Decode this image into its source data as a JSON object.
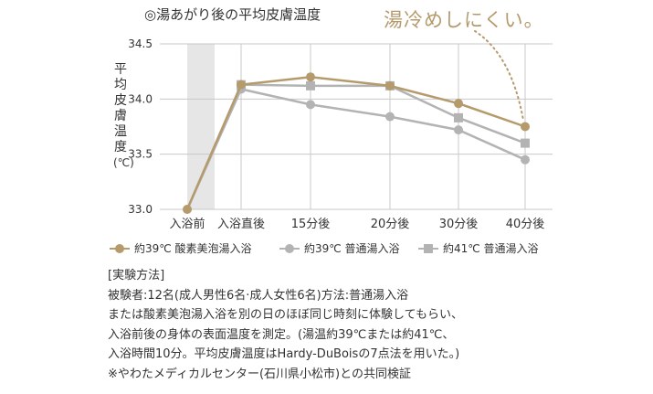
{
  "chart_data": {
    "type": "line",
    "title": "◎湯あがり後の平均皮膚温度",
    "annotation": "湯冷めしにくい。",
    "ylabel": [
      "平",
      "均",
      "皮",
      "膚",
      "温",
      "度",
      "(℃)"
    ],
    "ylim": [
      33.0,
      34.5
    ],
    "yticks": [
      "33.0",
      "33.5",
      "34.0",
      "34.5"
    ],
    "categories": [
      "入浴前",
      "入浴直後",
      "15分後",
      "20分後",
      "30分後",
      "40分後"
    ],
    "series": [
      {
        "name": "約39℃ 酸素美泡湯入浴",
        "marker": "circle",
        "color": "#b59a6c",
        "values": [
          33.0,
          34.13,
          34.2,
          34.12,
          33.96,
          33.75
        ]
      },
      {
        "name": "約39℃ 普通湯入浴",
        "marker": "circle",
        "color": "#b3b3b3",
        "values": [
          33.0,
          34.09,
          33.95,
          33.84,
          33.72,
          33.45
        ]
      },
      {
        "name": "約41℃ 普通湯入浴",
        "marker": "square",
        "color": "#b3b3b3",
        "values": [
          33.0,
          34.13,
          34.12,
          34.12,
          33.83,
          33.6
        ]
      }
    ]
  },
  "colors": {
    "gold": "#b59a6c",
    "gray": "#b3b3b3",
    "grid": "#c8c8c8",
    "shade": "#e6e6e6"
  },
  "notes": {
    "heading": "[実験方法]",
    "line1": "被験者:12名(成人男性6名·成人女性6名)方法:普通湯入浴",
    "line2": "または酸素美泡湯入浴を別の日のほぼ同じ時刻に体験してもらい、",
    "line3": "入浴前後の身体の表面温度を測定。(湯温約39℃または約41℃、",
    "line4": "入浴時間10分。平均皮膚温度はHardy-DuBoisの7点法を用いた。)",
    "line5": "※やわたメディカルセンター(石川県小松市)との共同検証"
  }
}
